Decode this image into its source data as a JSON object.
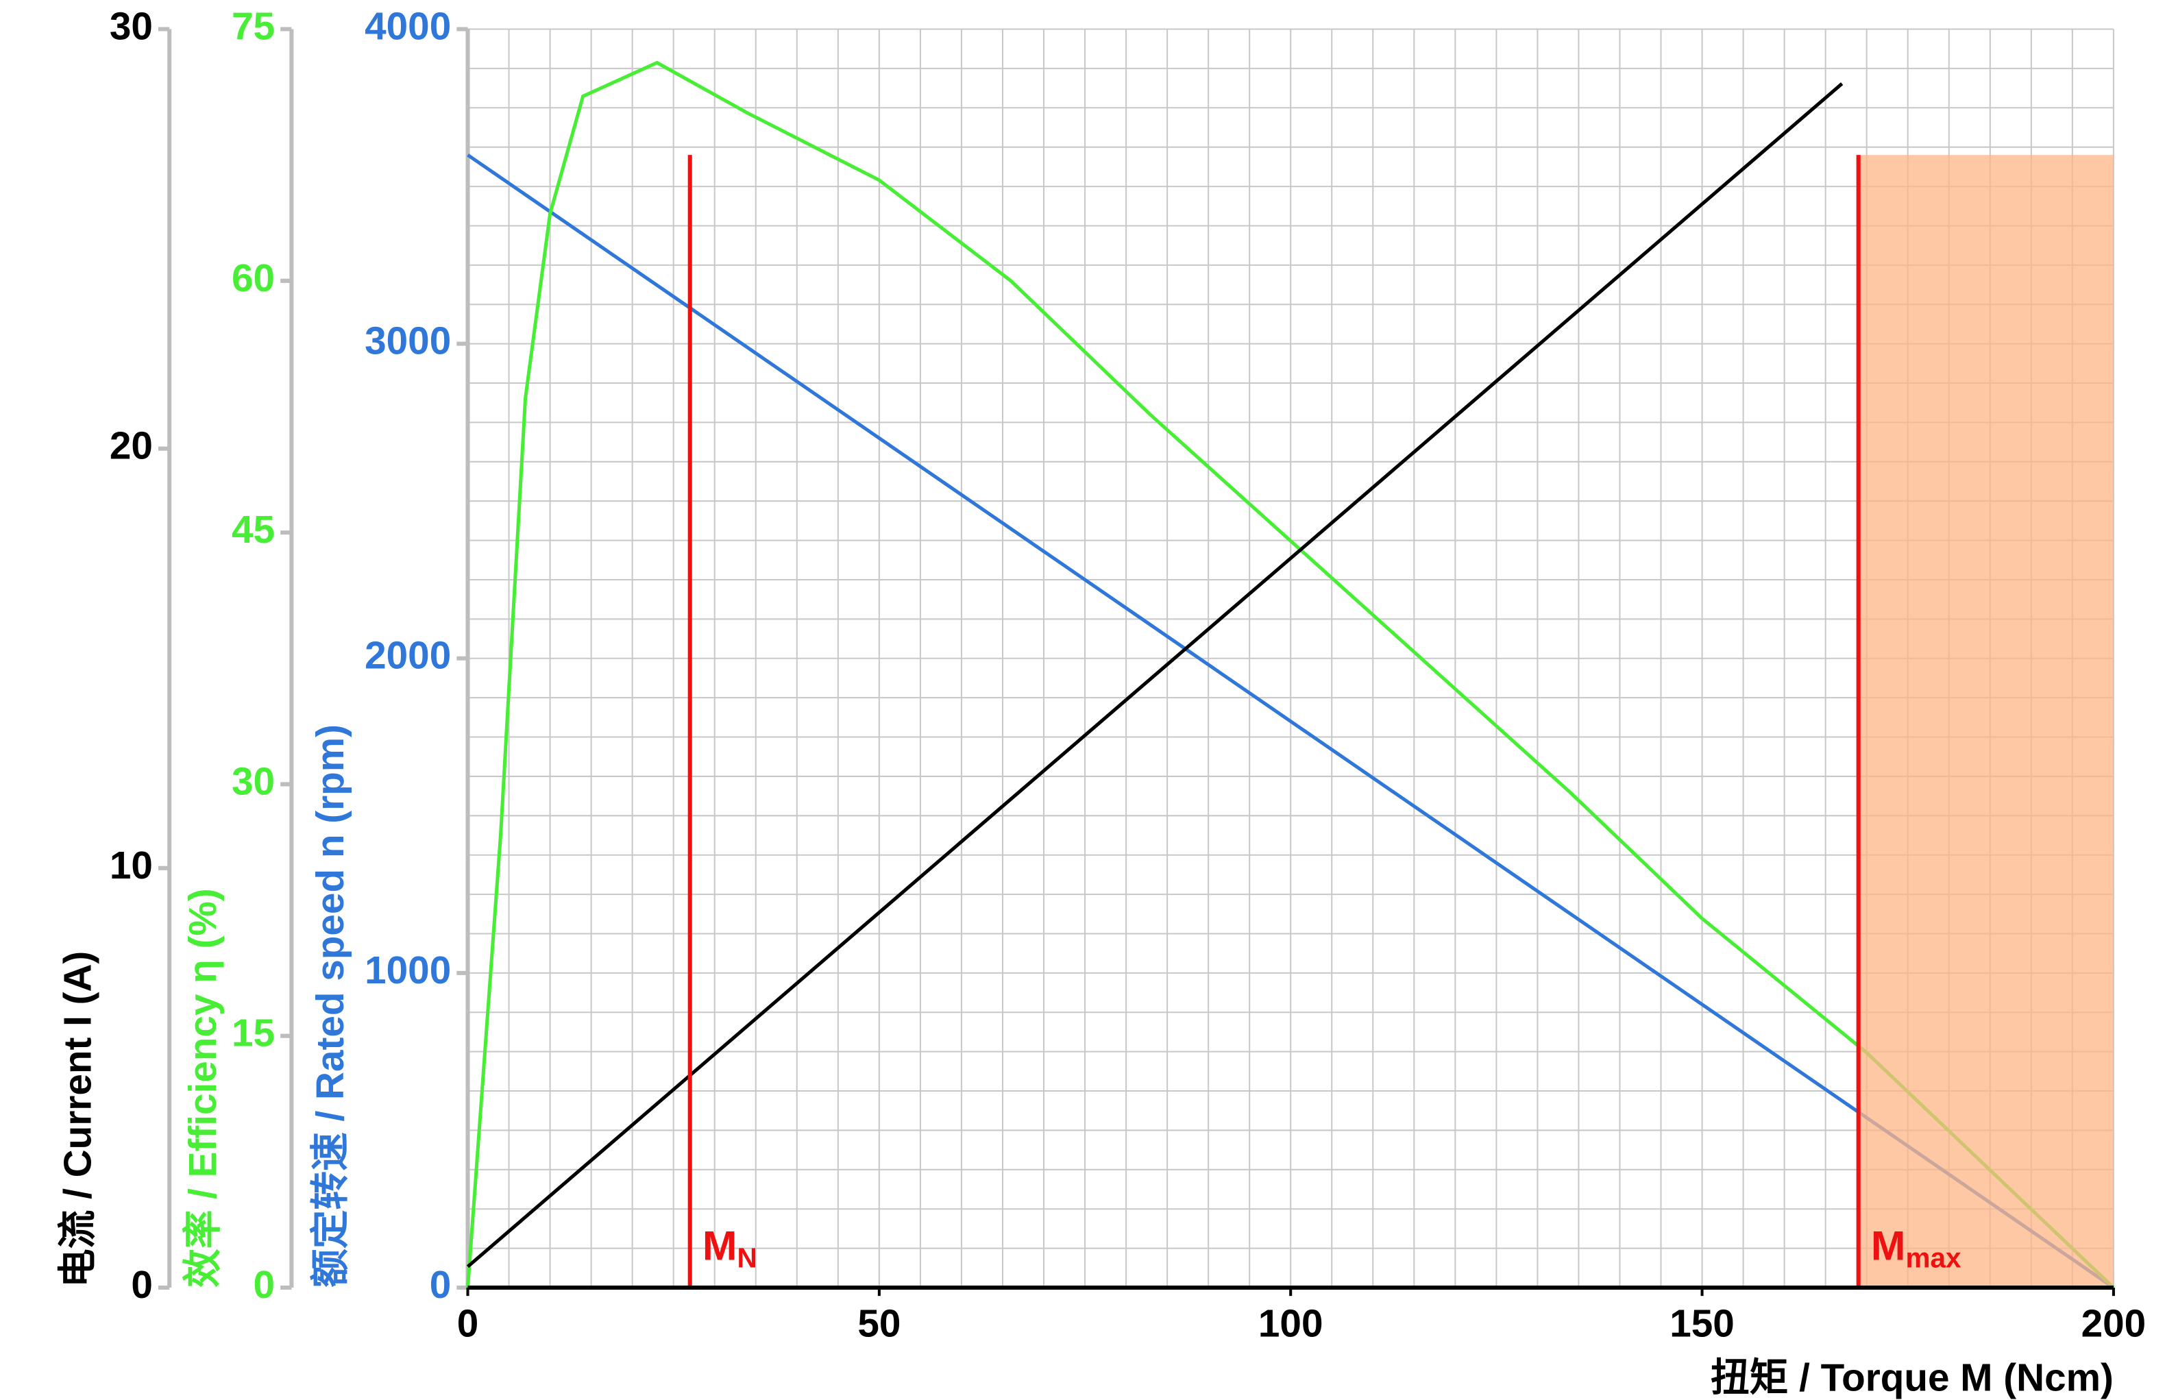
{
  "chart_data": {
    "type": "line",
    "x_label": "扭矩 / Torque M (Ncm)",
    "y_label": "额定转速 / Rated speed n (rpm)",
    "y2_label": "效率 / Efficiency η  (%)",
    "y3_label": "电流 / Current I (A)",
    "xlim": [
      0,
      200
    ],
    "xticks": [
      0,
      50,
      100,
      150,
      200
    ],
    "ylim": [
      0,
      4000
    ],
    "yticks": [
      0,
      1000,
      2000,
      3000,
      4000
    ],
    "y2lim": [
      0,
      75
    ],
    "y2ticks": [
      0,
      15,
      30,
      45,
      60,
      75
    ],
    "y3lim": [
      0,
      30
    ],
    "y3ticks": [
      0,
      10,
      20,
      30
    ],
    "grid": true,
    "x_grid": [
      0,
      5,
      10,
      15,
      20,
      25,
      30,
      35,
      40,
      45,
      50,
      55,
      60,
      65,
      70,
      75,
      80,
      85,
      90,
      95,
      100,
      105,
      110,
      115,
      120,
      125,
      130,
      135,
      140,
      145,
      150,
      155,
      160,
      165,
      170,
      175,
      180,
      185,
      190,
      195,
      200
    ],
    "y_grid": [
      0,
      125,
      250,
      375,
      500,
      625,
      750,
      875,
      1000,
      1125,
      1250,
      1375,
      1500,
      1625,
      1750,
      1875,
      2000,
      2125,
      2250,
      2375,
      2500,
      2625,
      2750,
      2875,
      3000,
      3125,
      3250,
      3375,
      3500,
      3625,
      3750,
      3875,
      4000
    ],
    "series": [
      {
        "name": "Rated speed",
        "color": "#2f77d9",
        "axis": "y",
        "x": [
          0,
          200
        ],
        "values": [
          3600,
          0
        ]
      },
      {
        "name": "Efficiency",
        "color": "#48ee35",
        "axis": "y2",
        "x": [
          0,
          4,
          7,
          10,
          14,
          23,
          34,
          50,
          66,
          83,
          100,
          117,
          134,
          150,
          170,
          200
        ],
        "values": [
          0,
          27,
          53,
          64,
          71,
          73,
          70,
          66,
          60,
          52,
          44.5,
          37,
          29.5,
          22,
          14,
          0
        ]
      },
      {
        "name": "Current",
        "color": "#000000",
        "axis": "y3",
        "x": [
          0,
          167
        ],
        "values": [
          0.5,
          28.7
        ]
      }
    ],
    "markers": [
      {
        "label": "M",
        "sub": "N",
        "x": 27,
        "top": 3600,
        "color": "#ee1111"
      },
      {
        "label": "M",
        "sub": "max",
        "x": 169,
        "top": 3600,
        "color": "#ee1111"
      }
    ],
    "shaded_region": {
      "from": 169,
      "to": 200,
      "top": 3600,
      "color": "#ffb585"
    }
  }
}
